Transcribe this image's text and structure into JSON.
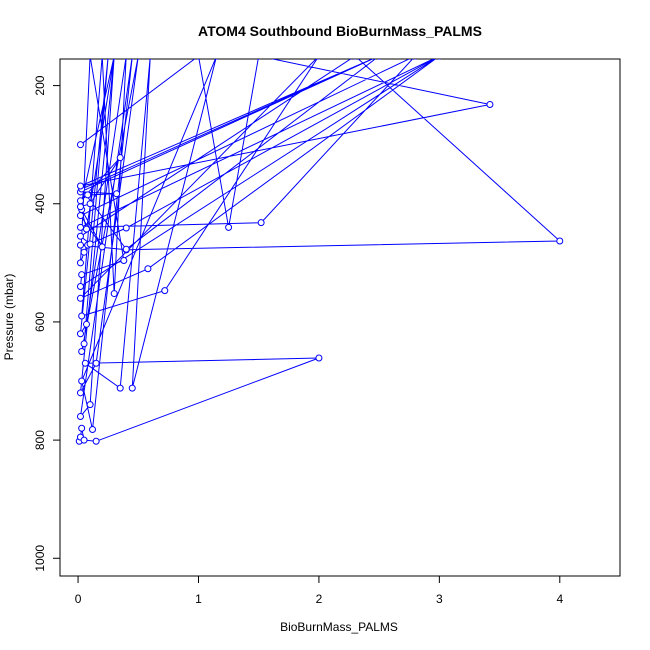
{
  "chart_data": {
    "type": "line",
    "title": "ATOM4 Southbound BioBurnMass_PALMS",
    "xlabel": "BioBurnMass_PALMS",
    "ylabel": "Pressure (mbar)",
    "xlim": [
      -0.15,
      4.5
    ],
    "ylim": [
      1030,
      155
    ],
    "y_reversed": true,
    "x_ticks": [
      0,
      1,
      2,
      3,
      4
    ],
    "y_ticks": [
      200,
      400,
      600,
      800,
      1000
    ],
    "grid": false,
    "series_color": "#0000ff",
    "series": [
      {
        "points": [
          [
            0.01,
            802
          ],
          [
            0.02,
            795
          ],
          [
            0.03,
            780
          ],
          [
            0.05,
            800
          ],
          [
            0.15,
            802
          ],
          [
            2.0,
            661
          ],
          [
            0.06,
            670
          ],
          [
            0.35,
            712
          ],
          [
            0.6,
            150
          ],
          [
            0.45,
            712
          ],
          [
            1.15,
            150
          ],
          [
            0.03,
            700
          ],
          [
            0.12,
            782
          ],
          [
            0.45,
            150
          ],
          [
            0.02,
            760
          ],
          [
            0.1,
            740
          ],
          [
            0.3,
            150
          ],
          [
            0.02,
            720
          ],
          [
            0.15,
            670
          ],
          [
            0.5,
            150
          ],
          [
            0.03,
            650
          ],
          [
            0.05,
            637
          ],
          [
            0.25,
            150
          ],
          [
            0.02,
            620
          ],
          [
            0.07,
            604
          ],
          [
            0.4,
            150
          ],
          [
            0.3,
            552
          ],
          [
            0.2,
            150
          ],
          [
            0.03,
            590
          ],
          [
            0.72,
            547
          ],
          [
            2.0,
            150
          ],
          [
            0.02,
            560
          ],
          [
            0.58,
            510
          ],
          [
            3.0,
            150
          ],
          [
            0.02,
            540
          ],
          [
            0.03,
            520
          ],
          [
            0.38,
            496
          ],
          [
            0.1,
            150
          ],
          [
            0.02,
            500
          ],
          [
            0.05,
            482
          ],
          [
            0.08,
            470
          ],
          [
            0.02,
            470
          ],
          [
            0.4,
            478
          ],
          [
            4.0,
            463
          ],
          [
            2.3,
            150
          ],
          [
            0.02,
            455
          ],
          [
            0.1,
            468
          ],
          [
            0.4,
            441
          ],
          [
            3.0,
            150
          ],
          [
            0.02,
            440
          ],
          [
            1.52,
            432
          ],
          [
            2.8,
            150
          ],
          [
            0.02,
            420
          ],
          [
            0.2,
            473
          ],
          [
            0.03,
            410
          ],
          [
            0.07,
            443
          ],
          [
            0.3,
            150
          ],
          [
            0.02,
            405
          ],
          [
            0.1,
            400
          ],
          [
            0.35,
            322
          ],
          [
            0.02,
            395
          ],
          [
            0.08,
            385
          ],
          [
            0.32,
            383
          ],
          [
            0.02,
            380
          ],
          [
            2.5,
            150
          ],
          [
            0.03,
            375
          ],
          [
            0.4,
            477
          ],
          [
            2.5,
            150
          ],
          [
            0.02,
            370
          ],
          [
            3.42,
            232
          ],
          [
            1.5,
            150
          ],
          [
            1.25,
            440
          ],
          [
            1.0,
            150
          ],
          [
            0.02,
            300
          ]
        ]
      }
    ]
  }
}
